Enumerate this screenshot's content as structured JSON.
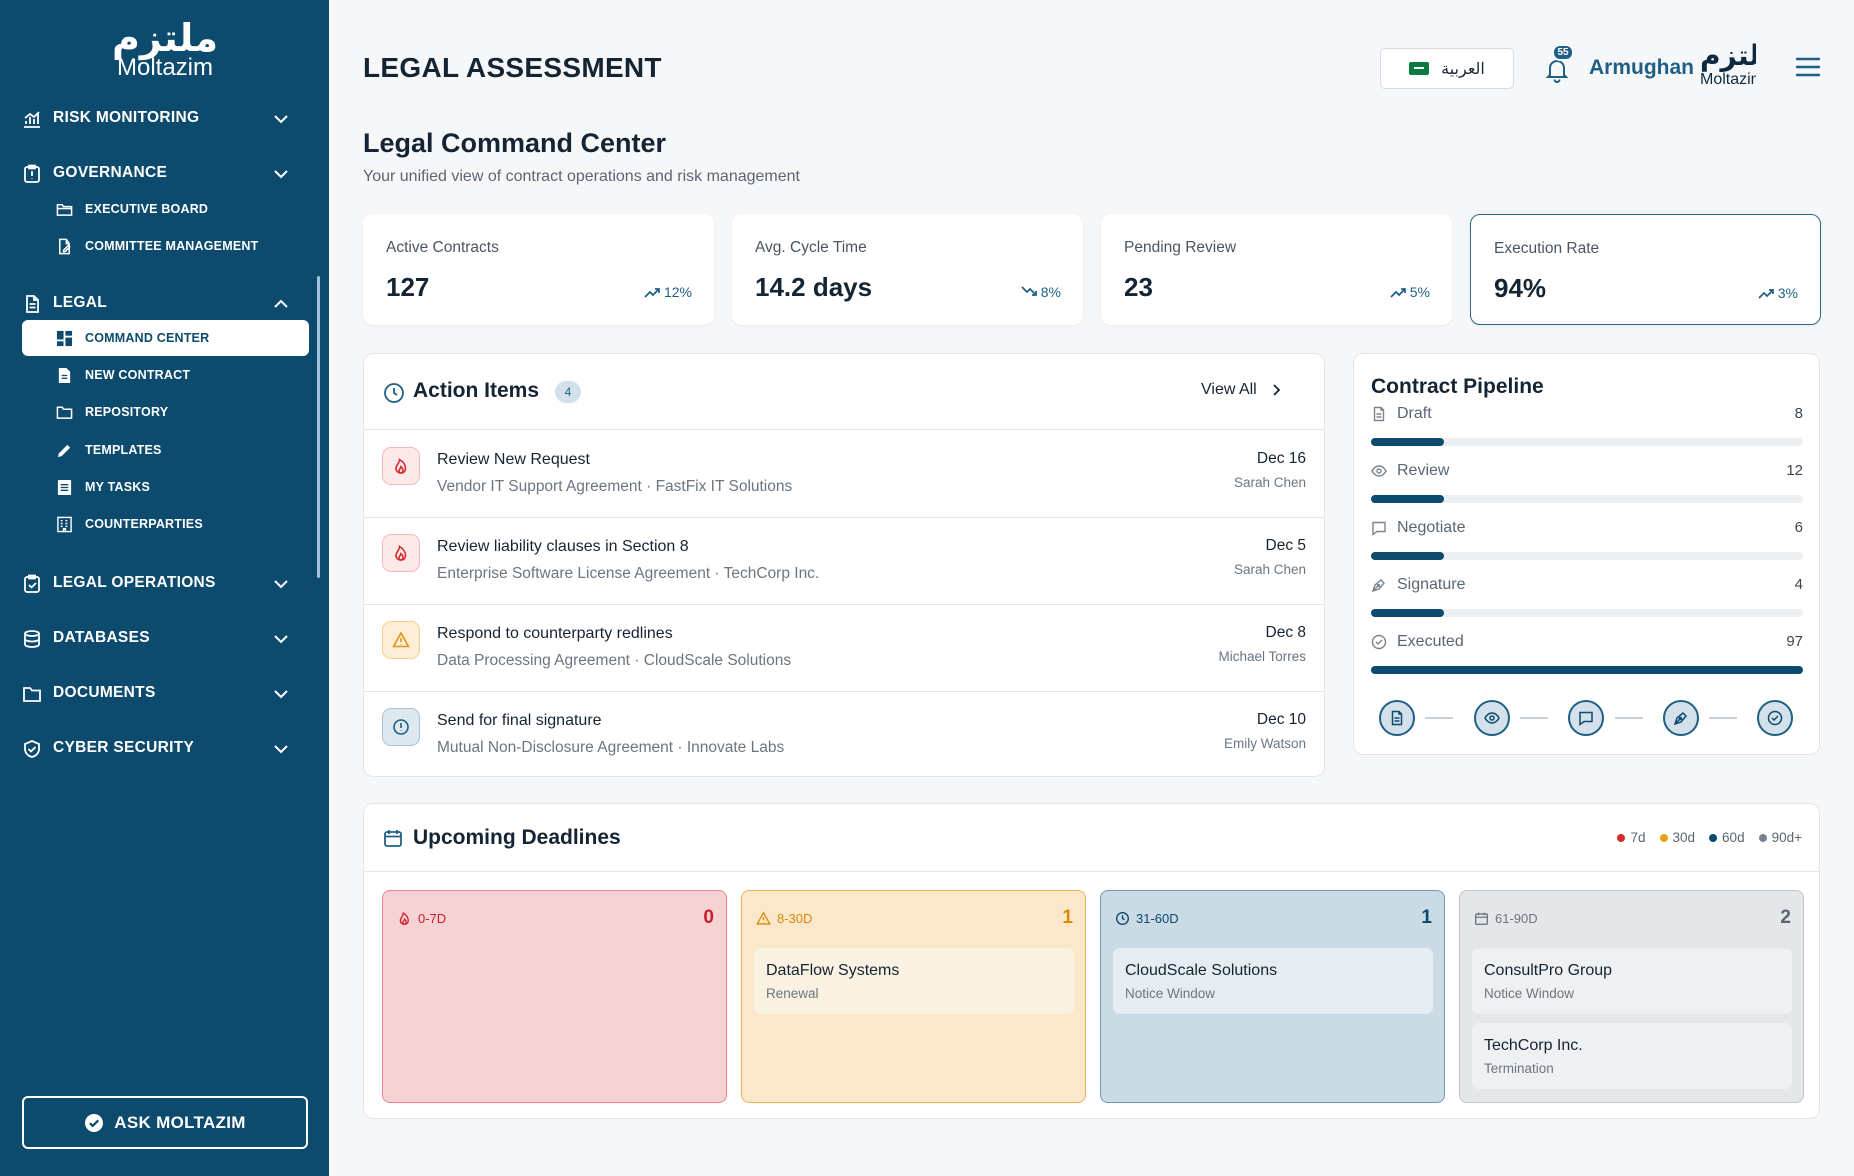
{
  "brand": {
    "logo_ar": "ملتزم",
    "logo_en": "Moltazim"
  },
  "sidebar": {
    "sections": [
      {
        "label": "RISK MONITORING",
        "icon": "chart-icon",
        "expanded": false
      },
      {
        "label": "GOVERNANCE",
        "icon": "clipboard-alert-icon",
        "expanded": true
      },
      {
        "label": "LEGAL",
        "icon": "document-icon",
        "expanded": true
      },
      {
        "label": "LEGAL OPERATIONS",
        "icon": "clipboard-check-icon",
        "expanded": false
      },
      {
        "label": "DATABASES",
        "icon": "database-icon",
        "expanded": false
      },
      {
        "label": "DOCUMENTS",
        "icon": "folder-icon",
        "expanded": false
      },
      {
        "label": "CYBER SECURITY",
        "icon": "shield-check-icon",
        "expanded": false
      }
    ],
    "governance_items": [
      {
        "label": "EXECUTIVE BOARD",
        "icon": "folder-open-icon"
      },
      {
        "label": "COMMITTEE MANAGEMENT",
        "icon": "file-edit-icon"
      }
    ],
    "legal_items": [
      {
        "label": "COMMAND CENTER",
        "icon": "dashboard-icon",
        "active": true
      },
      {
        "label": "NEW CONTRACT",
        "icon": "file-icon"
      },
      {
        "label": "REPOSITORY",
        "icon": "folder-icon"
      },
      {
        "label": "TEMPLATES",
        "icon": "pencil-icon"
      },
      {
        "label": "MY TASKS",
        "icon": "list-icon"
      },
      {
        "label": "COUNTERPARTIES",
        "icon": "building-icon"
      }
    ],
    "ask_button": "ASK MOLTAZIM"
  },
  "header": {
    "title": "LEGAL ASSESSMENT",
    "language": "العربية",
    "notifications": "55",
    "user": "Armughan",
    "logo_ar": "ملتزم",
    "logo_en": "Moltazim"
  },
  "main": {
    "title": "Legal Command Center",
    "subtitle": "Your unified view of contract operations and risk management",
    "stats": [
      {
        "label": "Active Contracts",
        "value": "127",
        "trend": "12%",
        "direction": "up"
      },
      {
        "label": "Avg. Cycle Time",
        "value": "14.2 days",
        "trend": "8%",
        "direction": "down"
      },
      {
        "label": "Pending Review",
        "value": "23",
        "trend": "5%",
        "direction": "up"
      },
      {
        "label": "Execution Rate",
        "value": "94%",
        "trend": "3%",
        "direction": "up"
      }
    ]
  },
  "action_items": {
    "title": "Action Items",
    "count": "4",
    "view_all": "View All",
    "items": [
      {
        "title": "Review New Request",
        "subtitle": "Vendor IT Support Agreement · FastFix IT Solutions",
        "date": "Dec 16",
        "person": "Sarah Chen",
        "priority": "urgent",
        "icon": "flame-icon"
      },
      {
        "title": "Review liability clauses in Section 8",
        "subtitle": "Enterprise Software License Agreement · TechCorp Inc.",
        "date": "Dec 5",
        "person": "Sarah Chen",
        "priority": "urgent",
        "icon": "flame-icon"
      },
      {
        "title": "Respond to counterparty redlines",
        "subtitle": "Data Processing Agreement · CloudScale Solutions",
        "date": "Dec 8",
        "person": "Michael Torres",
        "priority": "warning",
        "icon": "warning-icon"
      },
      {
        "title": "Send for final signature",
        "subtitle": "Mutual Non-Disclosure Agreement · Innovate Labs",
        "date": "Dec 10",
        "person": "Emily Watson",
        "priority": "info",
        "icon": "info-circle-icon"
      }
    ]
  },
  "pipeline": {
    "title": "Contract Pipeline",
    "max": 97,
    "stages": [
      {
        "label": "Draft",
        "count": 8,
        "icon": "file-icon"
      },
      {
        "label": "Review",
        "count": 12,
        "icon": "eye-icon"
      },
      {
        "label": "Negotiate",
        "count": 6,
        "icon": "chat-icon"
      },
      {
        "label": "Signature",
        "count": 4,
        "icon": "pen-nib-icon"
      },
      {
        "label": "Executed",
        "count": 97,
        "icon": "check-circle-icon"
      }
    ]
  },
  "deadlines": {
    "title": "Upcoming Deadlines",
    "legend": [
      {
        "label": "7d",
        "color": "#d62b2b"
      },
      {
        "label": "30d",
        "color": "#e6a118"
      },
      {
        "label": "60d",
        "color": "#0c4a6e"
      },
      {
        "label": "90d+",
        "color": "#7a848e"
      }
    ],
    "columns": [
      {
        "label": "0-7D",
        "count": "0",
        "icon": "flame-icon",
        "items": []
      },
      {
        "label": "8-30D",
        "count": "1",
        "icon": "warning-icon",
        "items": [
          {
            "name": "DataFlow Systems",
            "type": "Renewal"
          }
        ]
      },
      {
        "label": "31-60D",
        "count": "1",
        "icon": "clock-icon",
        "items": [
          {
            "name": "CloudScale Solutions",
            "type": "Notice Window"
          }
        ]
      },
      {
        "label": "61-90D",
        "count": "2",
        "icon": "calendar-icon",
        "items": [
          {
            "name": "ConsultPro Group",
            "type": "Notice Window"
          },
          {
            "name": "TechCorp Inc.",
            "type": "Termination"
          }
        ]
      }
    ]
  }
}
